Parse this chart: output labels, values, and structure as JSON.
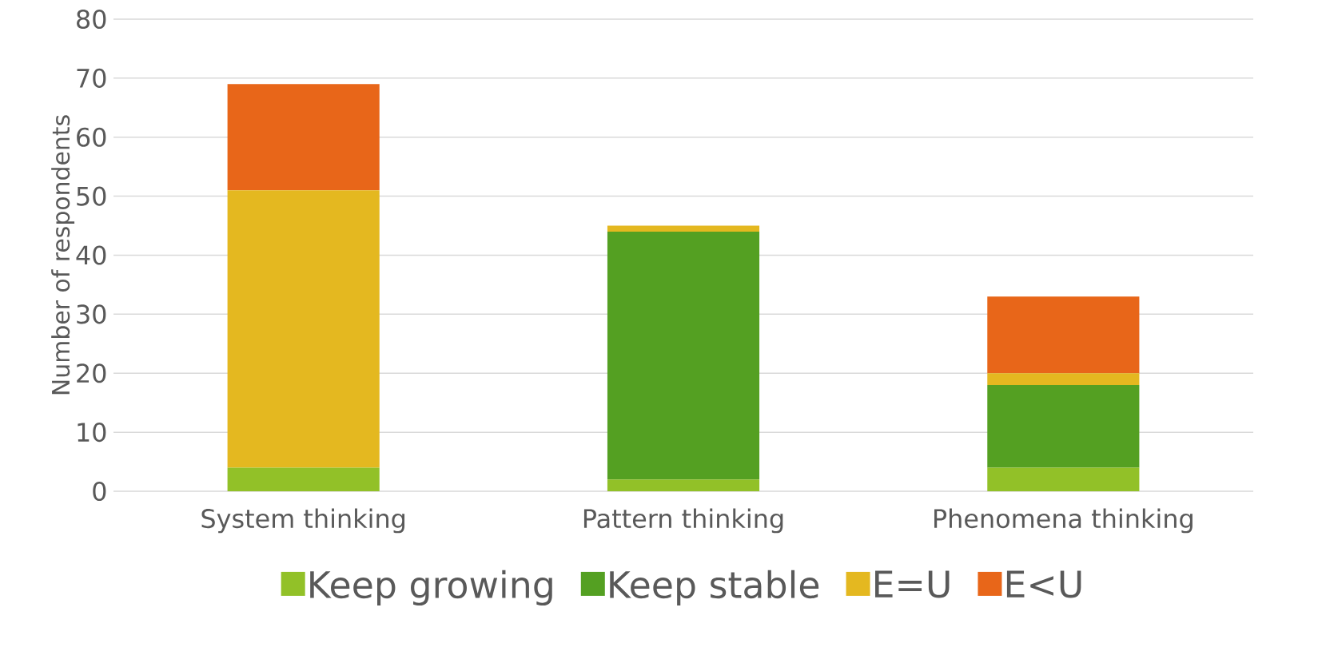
{
  "chart_data": {
    "type": "bar",
    "stacked": true,
    "ylabel": "Number of respondents",
    "categories": [
      "System thinking",
      "Pattern thinking",
      "Phenomena thinking"
    ],
    "series": [
      {
        "name": "Keep growing",
        "color": "#92c128",
        "values": [
          4,
          2,
          4
        ]
      },
      {
        "name": "Keep stable",
        "color": "#54a022",
        "values": [
          0,
          42,
          14
        ]
      },
      {
        "name": "E=U",
        "color": "#e4b820",
        "values": [
          47,
          1,
          2
        ]
      },
      {
        "name": "E<U",
        "color": "#e86619",
        "values": [
          18,
          0,
          13
        ]
      }
    ],
    "ylim": [
      0,
      80
    ],
    "yticks": [
      0,
      10,
      20,
      30,
      40,
      50,
      60,
      70,
      80
    ],
    "grid": "y",
    "legend": "bottom"
  }
}
